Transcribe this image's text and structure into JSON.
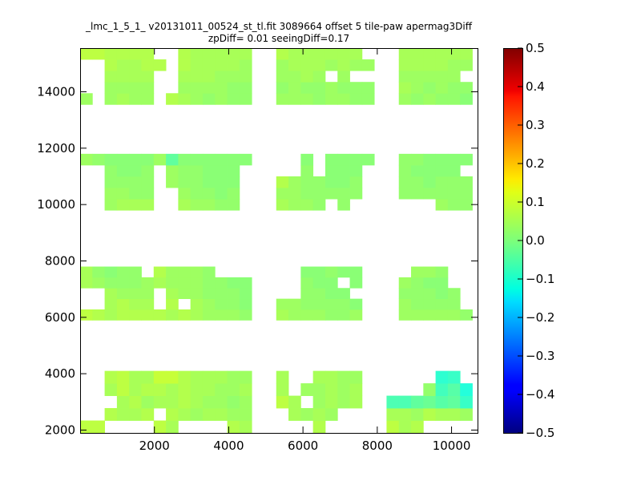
{
  "chart_data": {
    "type": "heatmap",
    "title_line1": "_lmc_1_5_1_ v20131011_00524_st_tl.fit 3089664 offset 5 tile-paw apermag3Diff",
    "title_line2": "zpDiff= 0.01 seeingDiff=0.17",
    "xlabel": "",
    "ylabel": "",
    "xlim": [
      0,
      10700
    ],
    "ylim": [
      1900,
      15550
    ],
    "xticks": [
      "2000",
      "4000",
      "6000",
      "8000",
      "10000"
    ],
    "xtick_values": [
      2000,
      4000,
      6000,
      8000,
      10000
    ],
    "yticks": [
      "2000",
      "4000",
      "6000",
      "8000",
      "10000",
      "12000",
      "14000"
    ],
    "ytick_values": [
      2000,
      4000,
      6000,
      8000,
      10000,
      12000,
      14000
    ],
    "colorbar": {
      "colormap": "jet",
      "vmin": -0.5,
      "vmax": 0.5,
      "ticks": [
        "0.5",
        "0.4",
        "0.3",
        "0.2",
        "0.1",
        "0.0",
        "−0.1",
        "−0.2",
        "−0.3",
        "−0.4",
        "−0.5"
      ],
      "tick_values": [
        0.5,
        0.4,
        0.3,
        0.2,
        0.1,
        0.0,
        -0.1,
        -0.2,
        -0.3,
        -0.4,
        -0.5
      ]
    },
    "grid": {
      "x_start": 0,
      "cell_width": 330,
      "columns": 32,
      "y_start": 1900,
      "cell_height": 427
    },
    "blocks": [
      {
        "y_range": [
          1900,
          4100
        ],
        "rows": [
          [
            0.06,
            0.06,
            0,
            0,
            0,
            0,
            0.06,
            0.04,
            0,
            0,
            0,
            0,
            0.05,
            0.04,
            0,
            0,
            0,
            0,
            0,
            0.05,
            0,
            0,
            0,
            0,
            0,
            0.06,
            0.04,
            0.05,
            0,
            0,
            0,
            0
          ],
          [
            0,
            0,
            0.05,
            0.04,
            0.04,
            0.05,
            0,
            0.05,
            0.04,
            0.03,
            0.04,
            0.04,
            0.03,
            0.03,
            0,
            0,
            0,
            0.04,
            0.03,
            0.04,
            0.03,
            0,
            0,
            0,
            0,
            0.04,
            0.04,
            0.03,
            0.05,
            0.04,
            0.04,
            0.03
          ],
          [
            0,
            0,
            0,
            0.04,
            0.05,
            0.03,
            0.04,
            0.04,
            0.05,
            0.04,
            0.03,
            0.03,
            0.02,
            0.03,
            0,
            0,
            0.06,
            0.04,
            0,
            0.03,
            0.04,
            0.03,
            0.04,
            0,
            0,
            -0.05,
            -0.05,
            -0.03,
            -0.02,
            -0.04,
            -0.03,
            -0.07
          ],
          [
            0,
            0,
            0.04,
            0.06,
            0.04,
            0.05,
            0.05,
            0.04,
            0.05,
            0.04,
            0.04,
            0.03,
            0.03,
            0.04,
            0,
            0,
            0.04,
            0,
            0.03,
            0.03,
            0.04,
            0.03,
            0.04,
            0,
            0,
            0,
            0,
            0,
            0.02,
            -0.06,
            -0.04,
            -0.09
          ],
          [
            0,
            0,
            0.05,
            0.06,
            0.04,
            0.04,
            0.07,
            0.07,
            0.05,
            0.04,
            0.04,
            0.04,
            0.03,
            0.03,
            0,
            0,
            0.04,
            0,
            0,
            0.04,
            0.04,
            0.03,
            0.03,
            0,
            0,
            0,
            0,
            0,
            0,
            -0.08,
            -0.07,
            0
          ]
        ]
      },
      {
        "y_range": [
          5900,
          7800
        ],
        "rows": [
          [
            0.06,
            0.05,
            0.04,
            0.05,
            0.05,
            0.05,
            0.05,
            0.04,
            0.05,
            0.04,
            0.03,
            0.03,
            0.03,
            0.02,
            0,
            0,
            0.04,
            0.03,
            0.03,
            0.03,
            0.02,
            0.02,
            0.03,
            0,
            0,
            0,
            0.03,
            0.03,
            0.03,
            0.03,
            0.03,
            0.02
          ],
          [
            0,
            0,
            0.04,
            0.05,
            0.04,
            0.04,
            0,
            0.05,
            0,
            0.04,
            0.03,
            0.02,
            0.02,
            0.01,
            0,
            0,
            0.03,
            0.03,
            0.02,
            0.02,
            0.02,
            0.02,
            0.01,
            0,
            0,
            0,
            0.03,
            0.02,
            0.02,
            0.02,
            0.02,
            0
          ],
          [
            0,
            0,
            0.04,
            0.03,
            0.03,
            0.03,
            0,
            0.04,
            0.03,
            0.03,
            0.02,
            0.02,
            0.02,
            0.01,
            0,
            0,
            0,
            0,
            0.02,
            0.02,
            0.01,
            0.01,
            0,
            0,
            0,
            0,
            0.02,
            0.02,
            0.02,
            0.01,
            0.02,
            0
          ],
          [
            0.04,
            0.03,
            0.02,
            0.02,
            0.02,
            0.03,
            0.04,
            0.03,
            0.03,
            0.03,
            0.02,
            0.02,
            0.01,
            0.01,
            0,
            0,
            0,
            0,
            0.02,
            0.01,
            0.01,
            0,
            0.01,
            0,
            0,
            0,
            0.03,
            0.02,
            0.01,
            0.01,
            0,
            0
          ],
          [
            0.04,
            0.02,
            0.01,
            0.02,
            0.02,
            0,
            0.05,
            0.03,
            0.03,
            0.03,
            0.02,
            0,
            0,
            0,
            0,
            0,
            0,
            0,
            0.01,
            0.01,
            0.02,
            0.01,
            0.01,
            0,
            0,
            0,
            0,
            0.03,
            0.03,
            0.02,
            0,
            0
          ]
        ]
      },
      {
        "y_range": [
          9800,
          11800
        ],
        "rows": [
          [
            0,
            0,
            0.03,
            0.04,
            0.04,
            0.04,
            0,
            0,
            0.04,
            0.03,
            0.03,
            0.02,
            0.02,
            0,
            0,
            0,
            0.04,
            0.03,
            0.03,
            0.02,
            0,
            0.02,
            0,
            0,
            0,
            0,
            0,
            0,
            0,
            0.03,
            0.02,
            0.02
          ],
          [
            0,
            0,
            0.03,
            0.03,
            0.02,
            0.02,
            0,
            0,
            0.03,
            0.02,
            0.02,
            0.01,
            0.02,
            0,
            0,
            0,
            0.03,
            0.03,
            0.02,
            0.02,
            0.02,
            0.02,
            0.02,
            0,
            0,
            0,
            0.02,
            0.02,
            0.02,
            0.02,
            0.02,
            0.02
          ],
          [
            0,
            0,
            0.02,
            0.02,
            0.02,
            0.02,
            0,
            0.03,
            0.02,
            0.02,
            0.01,
            0.01,
            0.01,
            0,
            0,
            0,
            0.05,
            0.03,
            0.02,
            0.02,
            0.01,
            0.01,
            0.02,
            0,
            0,
            0,
            0.02,
            0.02,
            0.01,
            0.02,
            0.02,
            0.02
          ],
          [
            0,
            0,
            0.02,
            0.01,
            0.01,
            0.02,
            0,
            0.03,
            0.02,
            0.02,
            0.01,
            0.01,
            0.01,
            0,
            0,
            0,
            0,
            0,
            0.02,
            0,
            0.01,
            0.01,
            0.01,
            0,
            0,
            0,
            0.02,
            0.01,
            0.01,
            0.01,
            0.01,
            0
          ],
          [
            0.03,
            0.02,
            0.01,
            0.01,
            0.01,
            0.01,
            0.03,
            -0.03,
            0.01,
            0.01,
            0.01,
            0.01,
            0.01,
            0.01,
            0,
            0,
            0,
            0,
            0.01,
            0,
            0.01,
            0.01,
            0.01,
            0.01,
            0,
            0,
            0.02,
            0.02,
            0.01,
            0.01,
            0.01,
            0.01
          ]
        ]
      },
      {
        "y_range": [
          13550,
          15550
        ],
        "rows": [
          [
            0.03,
            0,
            0.03,
            0.04,
            0.03,
            0.03,
            0,
            0.05,
            0.04,
            0.03,
            0.02,
            0.03,
            0.02,
            0.02,
            0,
            0,
            0.03,
            0.03,
            0.03,
            0.02,
            0.03,
            0.03,
            0.02,
            0.02,
            0,
            0,
            0.03,
            0.02,
            0.03,
            0.02,
            0.02,
            0.01
          ],
          [
            0,
            0,
            0.03,
            0.03,
            0.03,
            0.03,
            0,
            0,
            0.03,
            0.03,
            0.03,
            0.03,
            0.02,
            0.02,
            0,
            0,
            0.02,
            0.03,
            0.02,
            0.02,
            0.03,
            0.02,
            0.02,
            0.02,
            0,
            0,
            0.04,
            0.03,
            0.02,
            0.03,
            0.02,
            0.02
          ],
          [
            0,
            0,
            0.04,
            0.04,
            0.04,
            0.04,
            0,
            0,
            0.04,
            0.04,
            0.04,
            0.03,
            0.03,
            0.03,
            0,
            0,
            0.03,
            0.03,
            0.04,
            0.03,
            0,
            0.03,
            0,
            0,
            0,
            0,
            0.03,
            0.03,
            0.03,
            0.03,
            0.03,
            0
          ],
          [
            0,
            0,
            0.05,
            0.04,
            0.04,
            0.05,
            0.05,
            0,
            0.05,
            0.04,
            0.04,
            0.04,
            0.04,
            0.03,
            0,
            0,
            0.03,
            0.04,
            0.04,
            0.04,
            0.03,
            0.04,
            0.03,
            0.03,
            0,
            0,
            0.04,
            0.04,
            0.04,
            0.04,
            0.03,
            0.03
          ],
          [
            0.06,
            0.06,
            0.05,
            0.05,
            0.05,
            0.05,
            0,
            0,
            0.05,
            0.04,
            0.04,
            0.04,
            0.04,
            0.04,
            0,
            0,
            0.05,
            0.04,
            0.04,
            0.04,
            0.04,
            0.04,
            0.04,
            0,
            0,
            0,
            0.04,
            0.04,
            0.04,
            0.04,
            0.04,
            0.04
          ]
        ]
      }
    ]
  }
}
